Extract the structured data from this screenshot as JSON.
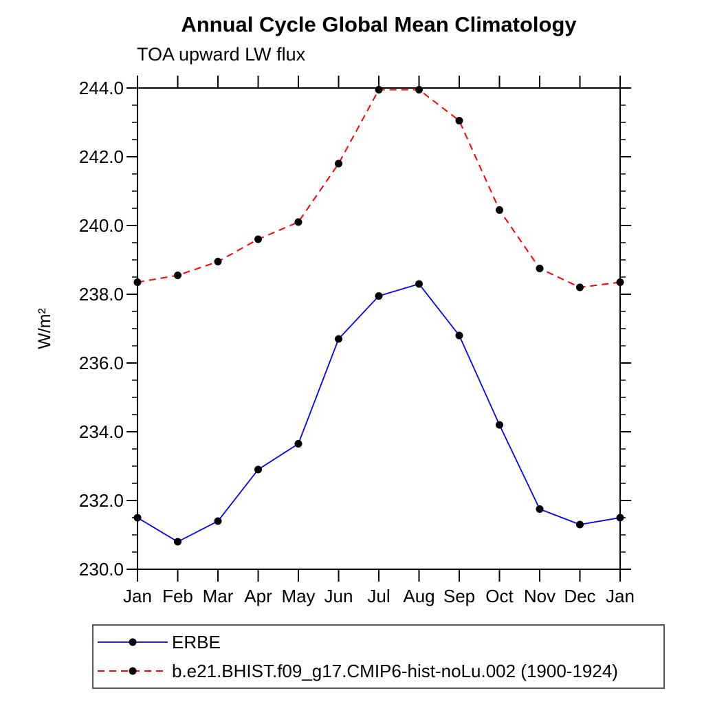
{
  "page": {
    "background": "#ffffff"
  },
  "chart_data": {
    "type": "line",
    "title": "Annual Cycle Global Mean Climatology",
    "subtitle": "TOA upward LW flux",
    "ylabel": "W/m²",
    "xlabel": "",
    "categories": [
      "Jan",
      "Feb",
      "Mar",
      "Apr",
      "May",
      "Jun",
      "Jul",
      "Aug",
      "Sep",
      "Oct",
      "Nov",
      "Dec",
      "Jan"
    ],
    "ylim": [
      230.0,
      244.0
    ],
    "ytick_major": 2.0,
    "ytick_minor": 0.5,
    "ytick_labels": [
      "230.0",
      "232.0",
      "234.0",
      "236.0",
      "238.0",
      "240.0",
      "242.0",
      "244.0"
    ],
    "grid": false,
    "frame_color": "#000000",
    "legend_position": "bottom-left-box",
    "series": [
      {
        "name": "ERBE",
        "color": "#0000ff",
        "line_style": "solid",
        "marker": "circle",
        "marker_color": "#000000",
        "values": [
          231.5,
          230.8,
          231.4,
          232.9,
          233.65,
          236.7,
          237.95,
          238.3,
          236.8,
          234.2,
          231.75,
          231.3,
          231.5
        ]
      },
      {
        "name": "b.e21.BHIST.f09_g17.CMIP6-hist-noLu.002 (1900-1924)",
        "color": "#ff0000",
        "line_style": "dashed",
        "marker": "circle",
        "marker_color": "#000000",
        "values": [
          238.35,
          238.55,
          238.95,
          239.6,
          240.1,
          241.8,
          243.95,
          243.95,
          243.05,
          240.45,
          238.75,
          238.2,
          238.35
        ]
      }
    ]
  }
}
